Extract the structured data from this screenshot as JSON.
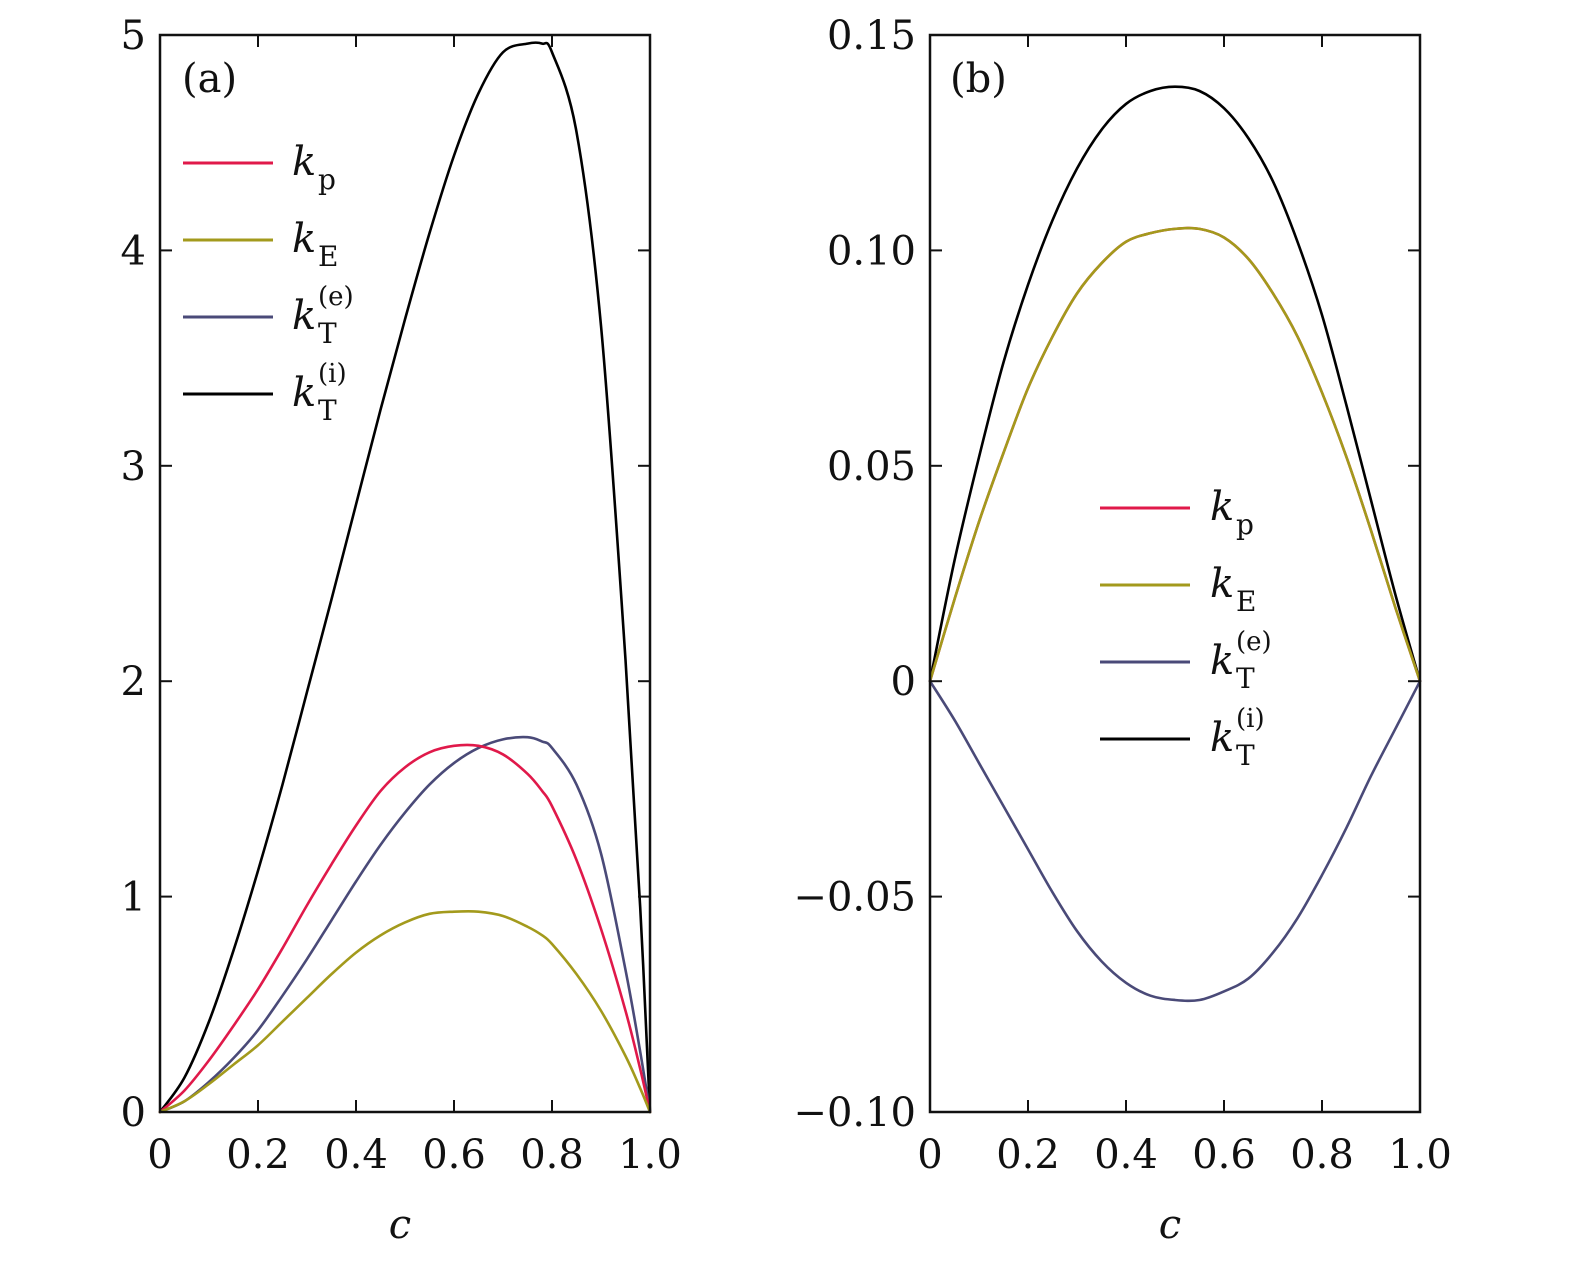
{
  "chart_data": [
    {
      "type": "line",
      "panel_label": "(a)",
      "xlabel": "c",
      "ylabel": "",
      "xlim": [
        0,
        1
      ],
      "ylim": [
        0,
        5
      ],
      "xticks": [
        0,
        0.2,
        0.4,
        0.6,
        0.8,
        1.0
      ],
      "xtick_labels": [
        "0",
        "0.2",
        "0.4",
        "0.6",
        "0.8",
        "1.0"
      ],
      "yticks": [
        0,
        1,
        2,
        3,
        4,
        5
      ],
      "ytick_labels": [
        "0",
        "1",
        "2",
        "3",
        "4",
        "5"
      ],
      "legend_position": "upper-left",
      "x": [
        0,
        0.05,
        0.1,
        0.15,
        0.2,
        0.25,
        0.3,
        0.35,
        0.4,
        0.45,
        0.5,
        0.55,
        0.6,
        0.65,
        0.7,
        0.75,
        0.78,
        0.8,
        0.85,
        0.9,
        0.95,
        0.98,
        1.0
      ],
      "series": [
        {
          "name": "k_T^(i)",
          "sub": "T",
          "sup": "(i)",
          "color": "#000000",
          "values": [
            0,
            0.16,
            0.42,
            0.75,
            1.12,
            1.52,
            1.95,
            2.38,
            2.82,
            3.26,
            3.68,
            4.08,
            4.44,
            4.73,
            4.92,
            4.96,
            4.96,
            4.92,
            4.55,
            3.65,
            2.1,
            0.95,
            0
          ]
        },
        {
          "name": "k_T^(e)",
          "sub": "T",
          "sup": "(e)",
          "color": "#4a4a78",
          "values": [
            0,
            0.05,
            0.14,
            0.25,
            0.38,
            0.54,
            0.71,
            0.89,
            1.07,
            1.24,
            1.39,
            1.52,
            1.62,
            1.69,
            1.73,
            1.74,
            1.72,
            1.69,
            1.52,
            1.2,
            0.66,
            0.28,
            0
          ]
        },
        {
          "name": "k_p",
          "sub": "p",
          "sup": "",
          "color": "#e0194a",
          "values": [
            0,
            0.1,
            0.24,
            0.4,
            0.57,
            0.76,
            0.96,
            1.15,
            1.33,
            1.49,
            1.6,
            1.67,
            1.7,
            1.7,
            1.66,
            1.57,
            1.49,
            1.42,
            1.17,
            0.85,
            0.47,
            0.2,
            0
          ]
        },
        {
          "name": "k_E",
          "sub": "E",
          "sup": "",
          "color": "#a39a1c",
          "values": [
            0,
            0.05,
            0.13,
            0.22,
            0.31,
            0.42,
            0.53,
            0.64,
            0.74,
            0.82,
            0.88,
            0.92,
            0.93,
            0.93,
            0.91,
            0.86,
            0.82,
            0.78,
            0.64,
            0.47,
            0.26,
            0.11,
            0
          ]
        }
      ]
    },
    {
      "type": "line",
      "panel_label": "(b)",
      "xlabel": "c",
      "ylabel": "",
      "xlim": [
        0,
        1
      ],
      "ylim": [
        -0.1,
        0.15
      ],
      "xticks": [
        0,
        0.2,
        0.4,
        0.6,
        0.8,
        1.0
      ],
      "xtick_labels": [
        "0",
        "0.2",
        "0.4",
        "0.6",
        "0.8",
        "1.0"
      ],
      "yticks": [
        -0.1,
        -0.05,
        0,
        0.05,
        0.1,
        0.15
      ],
      "ytick_labels": [
        "−0.10",
        "−0.05",
        "0",
        "0.05",
        "0.10",
        "0.15"
      ],
      "legend_position": "center",
      "x": [
        0,
        0.05,
        0.1,
        0.15,
        0.2,
        0.25,
        0.3,
        0.35,
        0.4,
        0.45,
        0.5,
        0.55,
        0.6,
        0.65,
        0.7,
        0.75,
        0.8,
        0.85,
        0.9,
        0.95,
        1.0
      ],
      "series": [
        {
          "name": "k_T^(i)",
          "sub": "T",
          "sup": "(i)",
          "color": "#000000",
          "values": [
            0,
            0.028,
            0.052,
            0.074,
            0.092,
            0.107,
            0.119,
            0.128,
            0.134,
            0.137,
            0.138,
            0.137,
            0.133,
            0.126,
            0.116,
            0.102,
            0.085,
            0.064,
            0.042,
            0.02,
            0
          ]
        },
        {
          "name": "k_p",
          "sub": "p",
          "sup": "",
          "color": "#e0194a",
          "values": [
            0,
            0.019,
            0.037,
            0.053,
            0.068,
            0.08,
            0.09,
            0.097,
            0.102,
            0.104,
            0.105,
            0.105,
            0.103,
            0.098,
            0.09,
            0.08,
            0.067,
            0.052,
            0.035,
            0.017,
            0
          ]
        },
        {
          "name": "k_E",
          "sub": "E",
          "sup": "",
          "color": "#a39a1c",
          "values": [
            0,
            0.019,
            0.037,
            0.053,
            0.068,
            0.08,
            0.09,
            0.097,
            0.102,
            0.104,
            0.105,
            0.105,
            0.103,
            0.098,
            0.09,
            0.08,
            0.067,
            0.052,
            0.035,
            0.017,
            0
          ]
        },
        {
          "name": "k_T^(e)",
          "sub": "T",
          "sup": "(e)",
          "color": "#4a4a78",
          "values": [
            0,
            -0.009,
            -0.019,
            -0.029,
            -0.039,
            -0.049,
            -0.058,
            -0.065,
            -0.07,
            -0.073,
            -0.074,
            -0.074,
            -0.072,
            -0.069,
            -0.063,
            -0.055,
            -0.045,
            -0.034,
            -0.022,
            -0.011,
            0
          ]
        }
      ]
    }
  ]
}
